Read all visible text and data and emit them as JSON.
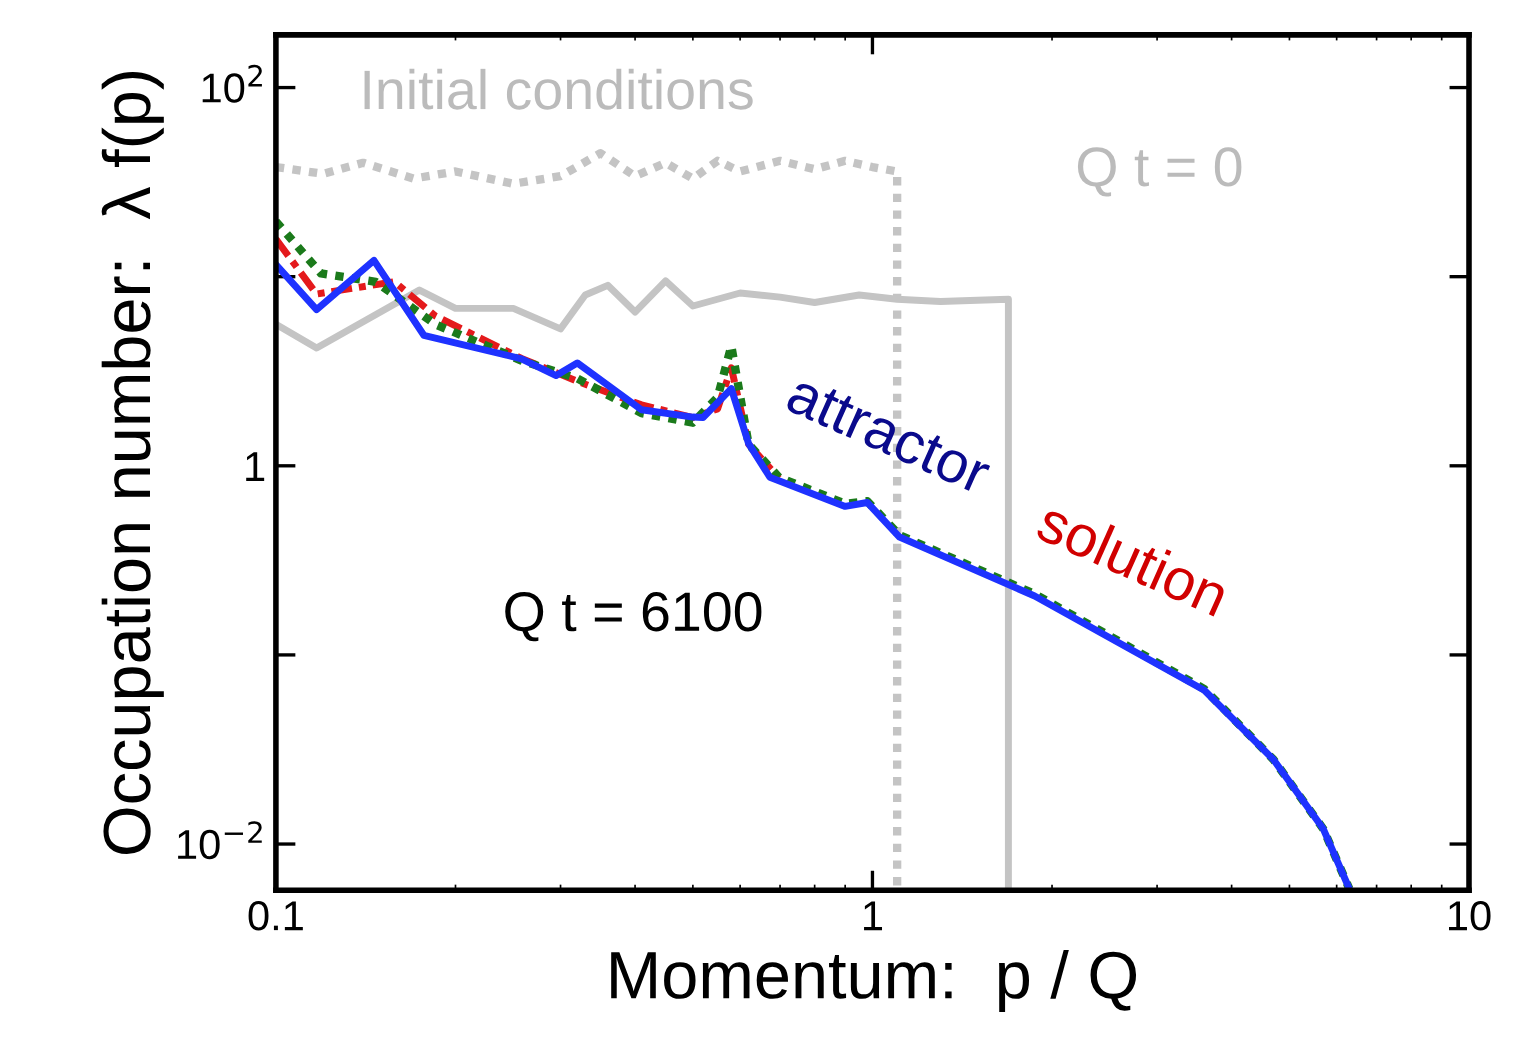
{
  "chart_data": {
    "type": "line",
    "xlabel": "Momentum:  p / Q",
    "ylabel": "Occupation number:  λ f(p)",
    "log": "xy",
    "xlim": [
      0.1,
      10
    ],
    "ylim": [
      0.0057,
      190
    ],
    "xticks": [
      0.1,
      1,
      10
    ],
    "yticks": [
      {
        "value": 0.01,
        "label": "10$^{−2}$"
      },
      {
        "value": 0.1,
        "label": null
      },
      1,
      {
        "value": 10,
        "label": null
      },
      {
        "value": 100,
        "label": "10$^{2}$"
      }
    ],
    "grid": false,
    "legend": false,
    "annotations": [
      "Initial conditions",
      "Q t = 0",
      "Q t = 6100",
      "attractor",
      "solution"
    ],
    "series": [
      {
        "color": "#c4c4c4",
        "line_style": "dotted",
        "x": [
          0.1,
          0.12,
          0.14,
          0.17,
          0.2,
          0.25,
          0.3,
          0.35,
          0.4,
          0.45,
          0.5,
          0.55,
          0.6,
          0.7,
          0.8,
          0.9,
          1.0,
          1.1,
          1.1
        ],
        "values": [
          38,
          35,
          40,
          33,
          36,
          31,
          34,
          45,
          34,
          40,
          33,
          41,
          36,
          41,
          37,
          41,
          38,
          36,
          0.0057
        ]
      },
      {
        "color": "#c4c4c4",
        "line_style": "solid",
        "x": [
          0.1,
          0.117,
          0.174,
          0.2,
          0.25,
          0.3,
          0.33,
          0.36,
          0.4,
          0.45,
          0.5,
          0.6,
          0.7,
          0.8,
          0.95,
          1.1,
          1.3,
          1.5,
          1.69,
          1.69
        ],
        "values": [
          5.6,
          4.2,
          8.5,
          6.8,
          6.8,
          5.3,
          8.0,
          9.0,
          6.5,
          9.5,
          7.0,
          8.2,
          7.8,
          7.3,
          8.0,
          7.6,
          7.4,
          7.5,
          7.6,
          0.0057
        ]
      },
      {
        "color": "#e41a1c",
        "line_style": "dashed",
        "x": [
          0.1,
          0.117,
          0.158,
          0.185,
          0.258,
          0.32,
          0.41,
          0.5,
          0.55,
          0.58,
          0.62,
          0.697
        ],
        "values": [
          15.8,
          8.1,
          9.4,
          6.2,
          3.7,
          2.8,
          2.1,
          1.8,
          2.0,
          3.3,
          1.3,
          0.86
        ]
      },
      {
        "color": "#1b7a1b",
        "line_style": "dotted",
        "x": [
          0.1,
          0.119,
          0.147,
          0.185,
          0.258,
          0.32,
          0.41,
          0.5,
          0.55,
          0.58,
          0.62,
          0.697,
          0.9,
          0.98,
          1.11,
          1.87,
          3.6,
          4.7,
          5.7,
          6.3
        ],
        "values": [
          19.6,
          10.4,
          9.4,
          5.6,
          3.6,
          2.9,
          1.9,
          1.69,
          2.3,
          4.3,
          1.3,
          0.87,
          0.63,
          0.65,
          0.43,
          0.21,
          0.066,
          0.028,
          0.012,
          0.0058
        ]
      },
      {
        "color": "#1e32ff",
        "line_style": "solid",
        "x": [
          0.1,
          0.117,
          0.146,
          0.177,
          0.258,
          0.295,
          0.32,
          0.41,
          0.5,
          0.52,
          0.58,
          0.62,
          0.673,
          0.9,
          0.98,
          1.11,
          1.87,
          3.6,
          4.7,
          5.7,
          6.3
        ],
        "values": [
          11.6,
          6.7,
          12.2,
          4.9,
          3.68,
          3.0,
          3.5,
          1.98,
          1.81,
          1.8,
          2.56,
          1.31,
          0.87,
          0.61,
          0.64,
          0.42,
          0.205,
          0.065,
          0.028,
          0.012,
          0.0058
        ]
      }
    ]
  }
}
